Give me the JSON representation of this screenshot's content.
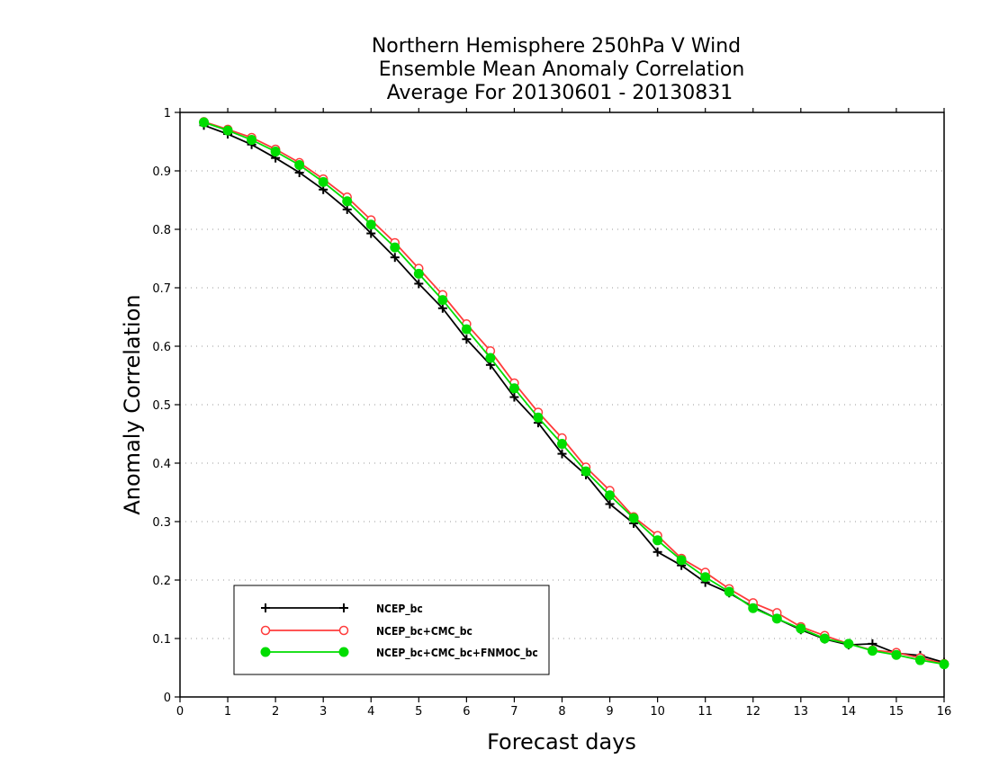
{
  "chart_data": {
    "type": "line",
    "title": [
      "Northern Hemisphere 250hPa V Wind",
      "Ensemble Mean Anomaly Correlation",
      "Average For 20130601 - 20130831"
    ],
    "xlabel": "Forecast days",
    "ylabel": "Anomaly Correlation",
    "xlim": [
      0,
      16
    ],
    "ylim": [
      0,
      1
    ],
    "x_ticks": [
      "0",
      "1",
      "2",
      "3",
      "4",
      "5",
      "6",
      "7",
      "8",
      "9",
      "10",
      "11",
      "12",
      "13",
      "14",
      "15",
      "16"
    ],
    "y_ticks": [
      "0",
      "0.1",
      "0.2",
      "0.3",
      "0.4",
      "0.5",
      "0.6",
      "0.7",
      "0.8",
      "0.9",
      "1"
    ],
    "grid": "horizontal dotted",
    "legend_position": "bottom-left",
    "x": [
      0.5,
      1,
      1.5,
      2,
      2.5,
      3,
      3.5,
      4,
      4.5,
      5,
      5.5,
      6,
      6.5,
      7,
      7.5,
      8,
      8.5,
      9,
      9.5,
      10,
      10.5,
      11,
      11.5,
      12,
      12.5,
      13,
      13.5,
      14,
      14.5,
      15,
      15.5,
      16
    ],
    "series": [
      {
        "name": "NCEP_bc",
        "color": "#000000",
        "marker": "plus",
        "values": [
          0.978,
          0.963,
          0.945,
          0.922,
          0.897,
          0.868,
          0.834,
          0.793,
          0.752,
          0.707,
          0.665,
          0.612,
          0.568,
          0.513,
          0.469,
          0.416,
          0.38,
          0.33,
          0.297,
          0.248,
          0.225,
          0.196,
          0.178,
          0.154,
          0.134,
          0.115,
          0.099,
          0.089,
          0.091,
          0.075,
          0.071,
          0.059
        ]
      },
      {
        "name": "NCEP_bc+CMC_bc",
        "color": "#ff3b3b",
        "marker": "open-circle",
        "values": [
          0.984,
          0.971,
          0.957,
          0.937,
          0.914,
          0.886,
          0.855,
          0.816,
          0.777,
          0.733,
          0.688,
          0.638,
          0.592,
          0.537,
          0.487,
          0.443,
          0.393,
          0.353,
          0.308,
          0.276,
          0.237,
          0.213,
          0.185,
          0.161,
          0.144,
          0.12,
          0.105,
          0.091,
          0.08,
          0.076,
          0.067,
          0.057
        ]
      },
      {
        "name": "NCEP_bc+CMC_bc+FNMOC_bc",
        "color": "#00dd00",
        "marker": "filled-circle",
        "values": [
          0.983,
          0.969,
          0.953,
          0.933,
          0.91,
          0.881,
          0.848,
          0.808,
          0.769,
          0.724,
          0.679,
          0.629,
          0.58,
          0.528,
          0.478,
          0.433,
          0.386,
          0.345,
          0.306,
          0.268,
          0.234,
          0.205,
          0.18,
          0.152,
          0.134,
          0.117,
          0.1,
          0.091,
          0.079,
          0.072,
          0.063,
          0.056
        ]
      }
    ]
  }
}
